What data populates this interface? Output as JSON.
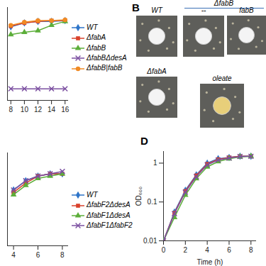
{
  "chart_data": [
    {
      "type": "line",
      "x": [
        8,
        10,
        12,
        14,
        16
      ],
      "xlim": [
        7.5,
        16.5
      ],
      "xticks": [
        8,
        10,
        12,
        14,
        16
      ],
      "ylim": [
        0,
        1.2
      ],
      "tick_labels": "x",
      "series": [
        {
          "name": "WT",
          "color": "#2e75c9",
          "marker": "diamond",
          "values": [
            0.95,
            1.0,
            1.02,
            1.02,
            1.03
          ]
        },
        {
          "name": "ΔfabA",
          "color": "#d9412b",
          "marker": "square",
          "values": [
            0.96,
            1.0,
            1.02,
            1.03,
            1.03
          ]
        },
        {
          "name": "ΔfabB",
          "color": "#5cae3a",
          "marker": "triangle",
          "values": [
            0.85,
            0.88,
            0.9,
            0.97,
            1.02
          ]
        },
        {
          "name": "ΔfabBΔdesA",
          "color": "#7b4fa0",
          "marker": "times",
          "values": [
            0.15,
            0.15,
            0.15,
            0.15,
            0.15
          ]
        },
        {
          "name": "ΔfabB|fabB",
          "color": "#f08a24",
          "marker": "circle",
          "values": [
            0.97,
            1.01,
            1.03,
            1.03,
            1.04
          ]
        }
      ]
    },
    {
      "type": "line",
      "x": [
        4,
        5,
        6,
        7,
        8
      ],
      "xlim": [
        3.5,
        8.5
      ],
      "xticks": [
        4,
        6,
        8
      ],
      "ylim": [
        0,
        2
      ],
      "tick_labels": "x",
      "series": [
        {
          "name": "WT",
          "color": "#2e75c9",
          "marker": "diamond",
          "values": [
            1.2,
            1.4,
            1.5,
            1.55,
            1.55
          ]
        },
        {
          "name": "ΔfabF2ΔdesA",
          "color": "#d9412b",
          "marker": "square",
          "values": [
            1.15,
            1.35,
            1.5,
            1.55,
            1.55
          ]
        },
        {
          "name": "ΔfabF1ΔdesA",
          "color": "#5cae3a",
          "marker": "triangle",
          "values": [
            1.1,
            1.3,
            1.45,
            1.5,
            1.55
          ]
        },
        {
          "name": "ΔfabF1ΔfabF2",
          "color": "#7b4fa0",
          "marker": "times",
          "values": [
            1.2,
            1.4,
            1.5,
            1.55,
            1.6
          ]
        }
      ]
    },
    {
      "type": "line",
      "title": "D",
      "x_label": "Time (h)",
      "y_label": "OD₆₀₀",
      "log": "y",
      "x": [
        0,
        1,
        2,
        3,
        4,
        5,
        6,
        7,
        8
      ],
      "xlim": [
        0,
        8.5
      ],
      "xticks": [
        0,
        2,
        4,
        6,
        8
      ],
      "ylim": [
        0.01,
        2
      ],
      "yticks": [
        0.01,
        0.1,
        1
      ],
      "series": [
        {
          "color": "#2e75c9",
          "marker": "diamond",
          "values": [
            0.01,
            0.055,
            0.2,
            0.5,
            1.0,
            1.3,
            1.4,
            1.5,
            1.5
          ]
        },
        {
          "color": "#d9412b",
          "marker": "square",
          "values": [
            0.01,
            0.052,
            0.19,
            0.48,
            0.95,
            1.25,
            1.4,
            1.5,
            1.5
          ]
        },
        {
          "color": "#5cae3a",
          "marker": "triangle",
          "values": [
            0.01,
            0.04,
            0.15,
            0.4,
            0.8,
            1.1,
            1.3,
            1.45,
            1.5
          ]
        },
        {
          "color": "#7b4fa0",
          "marker": "times",
          "values": [
            0.01,
            0.05,
            0.18,
            0.45,
            0.9,
            1.2,
            1.35,
            1.48,
            1.5
          ]
        }
      ]
    }
  ],
  "panel_b": {
    "title": "B",
    "group_label": "ΔfabB",
    "plates": [
      {
        "label": "WT"
      },
      {
        "label": "--"
      },
      {
        "label": "fabB"
      },
      {
        "label": "ΔfabA"
      },
      {
        "label": "oleate"
      }
    ]
  }
}
